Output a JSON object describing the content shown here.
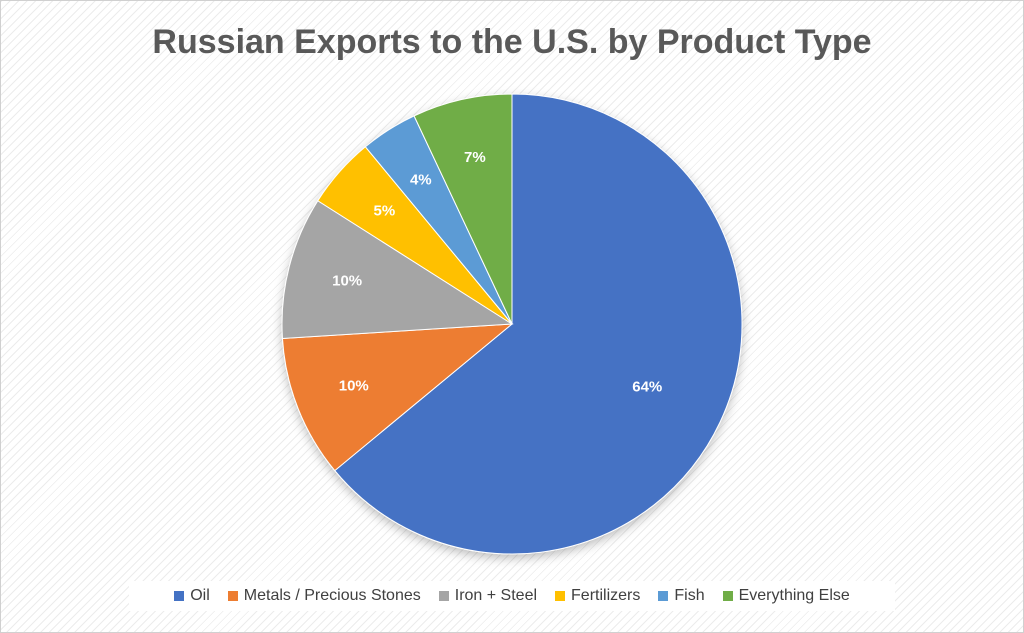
{
  "chart_data": {
    "type": "pie",
    "title": "Russian Exports to the U.S. by Product Type",
    "categories": [
      "Oil",
      "Metals / Precious Stones",
      "Iron + Steel",
      "Fertilizers",
      "Fish",
      "Everything Else"
    ],
    "values": [
      64,
      10,
      10,
      5,
      4,
      7
    ],
    "data_labels": [
      "64%",
      "10%",
      "10%",
      "5%",
      "4%",
      "7%"
    ],
    "colors": [
      "#4472C4",
      "#ED7D31",
      "#A5A5A5",
      "#FFC000",
      "#5B9BD5",
      "#70AD47"
    ],
    "unit": "%",
    "legend_position": "bottom"
  }
}
